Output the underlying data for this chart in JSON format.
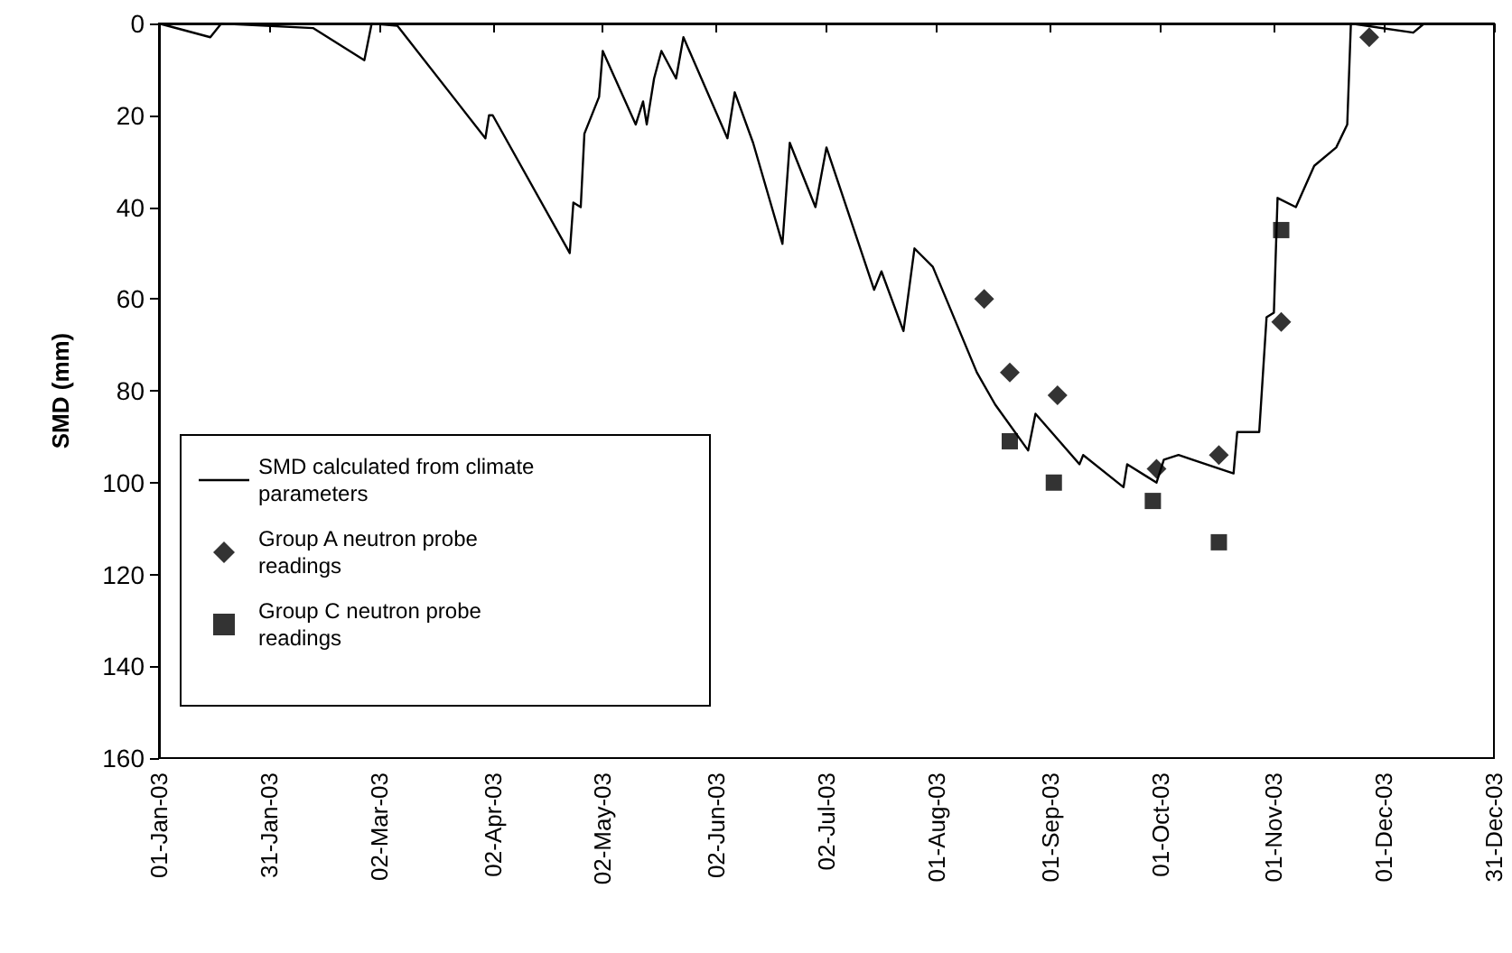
{
  "chart_data": {
    "type": "line",
    "ylabel": "SMD (mm)",
    "xlim": [
      "2003-01-01",
      "2003-12-31"
    ],
    "xticks": [
      {
        "value": "2003-01-01",
        "label": "01-Jan-03"
      },
      {
        "value": "2003-01-31",
        "label": "31-Jan-03"
      },
      {
        "value": "2003-03-02",
        "label": "02-Mar-03"
      },
      {
        "value": "2003-04-02",
        "label": "02-Apr-03"
      },
      {
        "value": "2003-05-02",
        "label": "02-May-03"
      },
      {
        "value": "2003-06-02",
        "label": "02-Jun-03"
      },
      {
        "value": "2003-07-02",
        "label": "02-Jul-03"
      },
      {
        "value": "2003-08-01",
        "label": "01-Aug-03"
      },
      {
        "value": "2003-09-01",
        "label": "01-Sep-03"
      },
      {
        "value": "2003-10-01",
        "label": "01-Oct-03"
      },
      {
        "value": "2003-11-01",
        "label": "01-Nov-03"
      },
      {
        "value": "2003-12-01",
        "label": "01-Dec-03"
      },
      {
        "value": "2003-12-31",
        "label": "31-Dec-03"
      }
    ],
    "ylim": [
      160,
      0
    ],
    "yticks": [
      0,
      20,
      40,
      60,
      80,
      100,
      120,
      140,
      160
    ],
    "grid": false,
    "legend": "bottom left",
    "series": [
      {
        "name": "SMD calculated from climate parameters",
        "marker": "none",
        "color": "#000000",
        "x": [
          "2003-01-01",
          "2003-01-15",
          "2003-01-18",
          "2003-02-12",
          "2003-02-26",
          "2003-02-28",
          "2003-03-07",
          "2003-03-31",
          "2003-04-01",
          "2003-04-02",
          "2003-04-23",
          "2003-04-24",
          "2003-04-26",
          "2003-04-27",
          "2003-05-01",
          "2003-05-02",
          "2003-05-11",
          "2003-05-13",
          "2003-05-14",
          "2003-05-16",
          "2003-05-18",
          "2003-05-22",
          "2003-05-24",
          "2003-06-05",
          "2003-06-07",
          "2003-06-12",
          "2003-06-20",
          "2003-06-22",
          "2003-06-29",
          "2003-07-02",
          "2003-07-15",
          "2003-07-17",
          "2003-07-23",
          "2003-07-26",
          "2003-07-31",
          "2003-08-12",
          "2003-08-17",
          "2003-08-26",
          "2003-08-28",
          "2003-09-09",
          "2003-09-10",
          "2003-09-21",
          "2003-09-22",
          "2003-09-30",
          "2003-10-02",
          "2003-10-06",
          "2003-10-21",
          "2003-10-22",
          "2003-10-28",
          "2003-10-30",
          "2003-11-01",
          "2003-11-02",
          "2003-11-07",
          "2003-11-12",
          "2003-11-18",
          "2003-11-21",
          "2003-11-22",
          "2003-12-09",
          "2003-12-12",
          "2003-12-31"
        ],
        "values": [
          0,
          3,
          0,
          1,
          8,
          0,
          0.5,
          25,
          20,
          20,
          50,
          39,
          40,
          24,
          16,
          6,
          22,
          17,
          22,
          12,
          6,
          12,
          3,
          25,
          15,
          26,
          48,
          26,
          40,
          27,
          58,
          54,
          67,
          49,
          53,
          76,
          83,
          93,
          85,
          96,
          94,
          101,
          96,
          100,
          95,
          94,
          98,
          89,
          89,
          64,
          63,
          38,
          40,
          31,
          27,
          22,
          0,
          2,
          0,
          0
        ]
      },
      {
        "name": "Group A neutron probe readings",
        "type": "scatter",
        "marker": "diamond",
        "color": "#000000",
        "x": [
          "2003-08-14",
          "2003-08-21",
          "2003-09-03",
          "2003-09-30",
          "2003-10-17",
          "2003-11-03",
          "2003-11-27"
        ],
        "values": [
          60,
          76,
          81,
          97,
          94,
          65,
          3
        ]
      },
      {
        "name": "Group C neutron probe readings",
        "type": "scatter",
        "marker": "square",
        "color": "#000000",
        "x": [
          "2003-08-21",
          "2003-09-02",
          "2003-09-29",
          "2003-10-17",
          "2003-11-03"
        ],
        "values": [
          91,
          100,
          104,
          113,
          45
        ]
      }
    ]
  }
}
